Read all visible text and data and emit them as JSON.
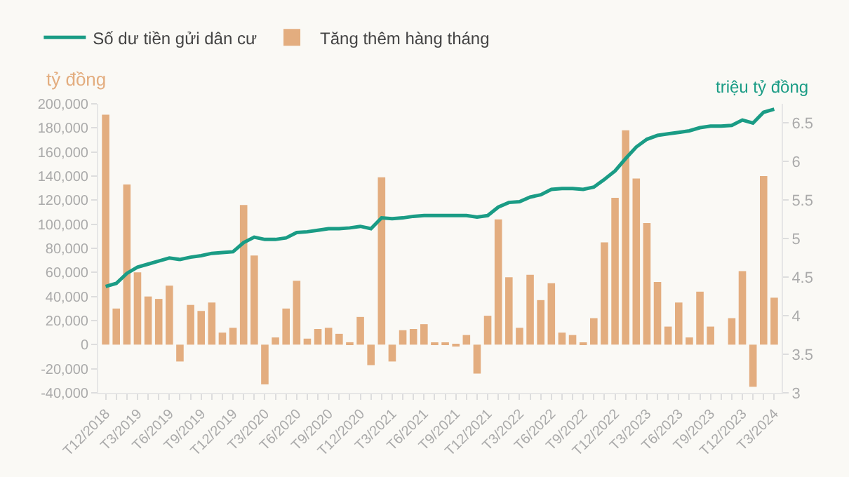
{
  "chart_data": {
    "type": "bar",
    "ylabel": "tỷ đồng",
    "y2label": "triệu tỷ đồng",
    "legend": "top left",
    "grid": false,
    "categories": [
      "T12/2018",
      null,
      null,
      "T3/2019",
      null,
      null,
      "T6/2019",
      null,
      null,
      "T9/2019",
      null,
      null,
      "T12/2019",
      null,
      null,
      "T3/2020",
      null,
      null,
      "T6/2020",
      null,
      null,
      "T9/2020",
      null,
      null,
      "T12/2020",
      null,
      null,
      "T3/2021",
      null,
      null,
      "T6/2021",
      null,
      null,
      "T9/2021",
      null,
      null,
      "T12/2021",
      null,
      null,
      "T3/2022",
      null,
      null,
      "T6/2022",
      null,
      null,
      "T9/2022",
      null,
      null,
      "T12/2022",
      null,
      null,
      "T3/2023",
      null,
      null,
      "T6/2023",
      null,
      null,
      "T9/2023",
      null,
      null,
      "T12/2023",
      null,
      null,
      "T3/2024"
    ],
    "series": [
      {
        "name": "Số dư tiền gửi dân cư",
        "type": "line",
        "axis": "y2",
        "color": "#1a9c85",
        "values": [
          4.38,
          4.42,
          4.55,
          4.63,
          4.67,
          4.71,
          4.75,
          4.73,
          4.76,
          4.78,
          4.81,
          4.82,
          4.83,
          4.95,
          5.02,
          4.99,
          4.99,
          5.01,
          5.08,
          5.09,
          5.11,
          5.13,
          5.13,
          5.14,
          5.16,
          5.13,
          5.27,
          5.26,
          5.27,
          5.29,
          5.3,
          5.3,
          5.3,
          5.3,
          5.3,
          5.28,
          5.3,
          5.41,
          5.47,
          5.48,
          5.54,
          5.57,
          5.64,
          5.65,
          5.65,
          5.64,
          5.67,
          5.77,
          5.88,
          6.04,
          6.19,
          6.29,
          6.34,
          6.36,
          6.38,
          6.4,
          6.44,
          6.46,
          6.46,
          6.47,
          6.54,
          6.5,
          6.64,
          6.68
        ]
      },
      {
        "name": "Tăng thêm hàng tháng",
        "color": "#e3ad7f",
        "values": [
          191000,
          30000,
          133000,
          60000,
          40000,
          38000,
          49000,
          -14000,
          33000,
          28000,
          35000,
          10000,
          14000,
          116000,
          74000,
          -33000,
          6000,
          30000,
          53000,
          5000,
          13000,
          14000,
          9000,
          2000,
          23000,
          -17000,
          139000,
          -14000,
          12000,
          13000,
          17000,
          1000,
          1000,
          -1000,
          8000,
          -24000,
          24000,
          104000,
          56000,
          14000,
          58000,
          37000,
          51000,
          10000,
          8000,
          1000,
          22000,
          85000,
          122000,
          178000,
          138000,
          101000,
          52000,
          15000,
          35000,
          6000,
          44000,
          15000,
          0,
          22000,
          61000,
          -35000,
          140000,
          39000
        ]
      }
    ],
    "ylim": [
      -40000,
      200000
    ],
    "yticks": [
      {
        "value": -40000,
        "label": "-40,000"
      },
      {
        "value": -20000,
        "label": "-20,000"
      },
      0,
      {
        "value": 20000,
        "label": "20,000"
      },
      {
        "value": 40000,
        "label": "40,000"
      },
      {
        "value": 60000,
        "label": "60,000"
      },
      {
        "value": 80000,
        "label": "80,000"
      },
      {
        "value": 100000,
        "label": "100,000"
      },
      {
        "value": 120000,
        "label": "120,000"
      },
      {
        "value": 140000,
        "label": "140,000"
      },
      {
        "value": 160000,
        "label": "160,000"
      },
      {
        "value": 180000,
        "label": "180,000"
      },
      {
        "value": 200000,
        "label": "200,000"
      }
    ],
    "y2lim": [
      3,
      6.75
    ],
    "y2ticks": [
      3,
      3.5,
      4,
      4.5,
      5,
      5.5,
      6,
      6.5
    ]
  }
}
